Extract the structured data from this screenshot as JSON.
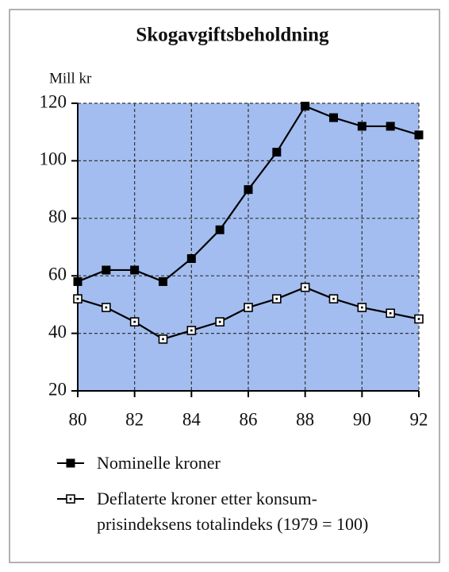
{
  "chart_data": {
    "type": "line",
    "title": "Skogavgiftsbeholdning",
    "y_label": "Mill kr",
    "x": [
      80,
      81,
      82,
      83,
      84,
      85,
      86,
      87,
      88,
      89,
      90,
      91,
      92
    ],
    "xlim": [
      80,
      92
    ],
    "xticks": [
      80,
      82,
      84,
      86,
      88,
      90,
      92
    ],
    "ylim": [
      20,
      120
    ],
    "yticks": [
      20,
      40,
      60,
      80,
      100,
      120
    ],
    "grid": true,
    "plot_background": "#a3bdf0",
    "series": [
      {
        "name": "Nominelle kroner",
        "color": "#000000",
        "marker": "filled",
        "values": [
          58,
          62,
          62,
          58,
          66,
          76,
          90,
          103,
          119,
          115,
          112,
          112,
          109
        ]
      },
      {
        "name": "Deflaterte kroner etter konsum-\nprisindeksens totalindeks (1979 = 100)",
        "color": "#000000",
        "marker": "open",
        "values": [
          52,
          49,
          44,
          38,
          41,
          44,
          49,
          52,
          56,
          52,
          49,
          47,
          45
        ]
      }
    ]
  }
}
